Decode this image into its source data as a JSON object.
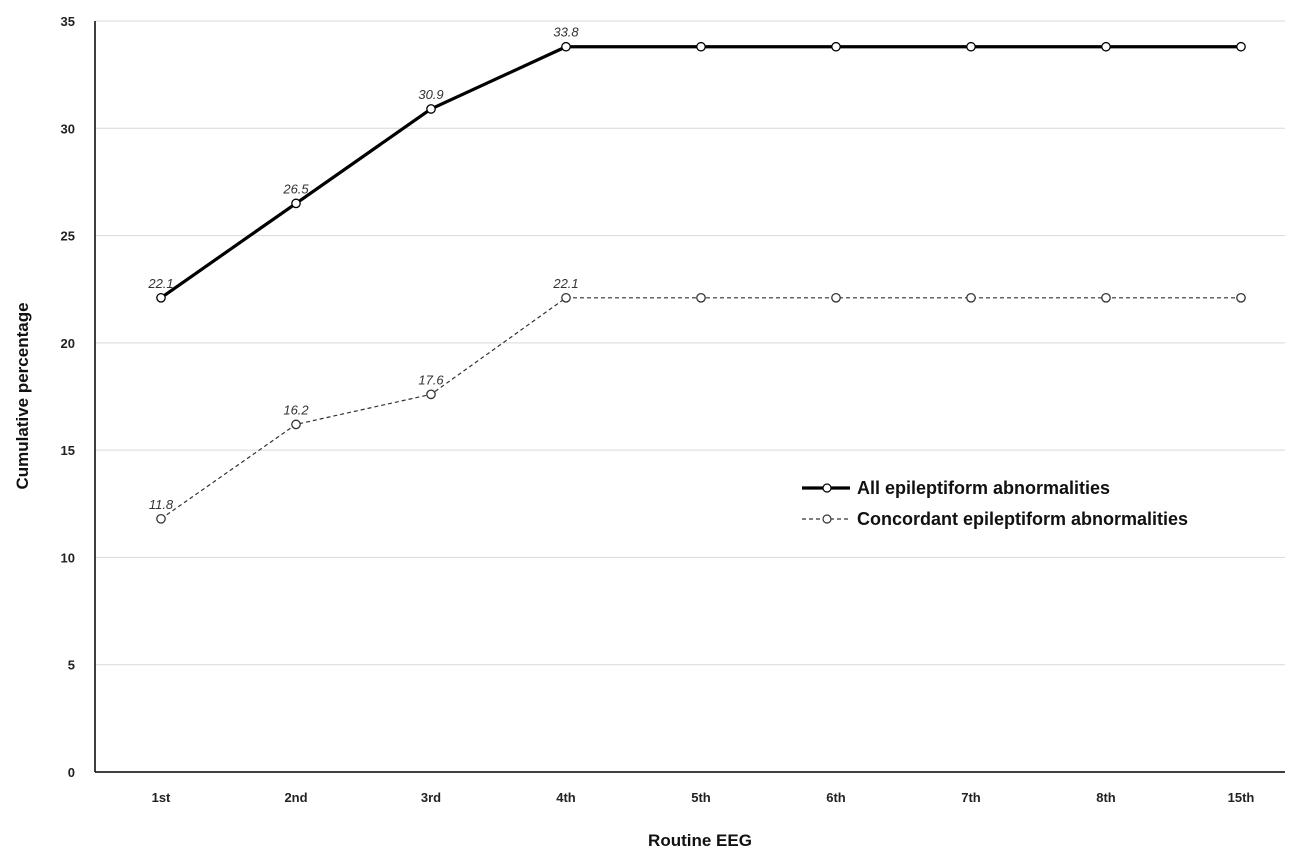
{
  "chart_data": {
    "type": "line",
    "categories": [
      "1st",
      "2nd",
      "3rd",
      "4th",
      "5th",
      "6th",
      "7th",
      "8th",
      "15th"
    ],
    "series": [
      {
        "name": "All epileptiform abnormalities",
        "values": [
          22.1,
          26.5,
          30.9,
          33.8,
          33.8,
          33.8,
          33.8,
          33.8,
          33.8
        ],
        "labels": [
          "22.1",
          "26.5",
          "30.9",
          "33.8",
          "",
          "",
          "",
          "",
          ""
        ],
        "line_style": "solid",
        "color": "#000000"
      },
      {
        "name": "Concordant epileptiform abnormalities",
        "values": [
          11.8,
          16.2,
          17.6,
          22.1,
          22.1,
          22.1,
          22.1,
          22.1,
          22.1
        ],
        "labels": [
          "11.8",
          "16.2",
          "17.6",
          "22.1",
          "",
          "",
          "",
          "",
          ""
        ],
        "line_style": "dashed",
        "color": "#333333"
      }
    ],
    "xlabel": "Routine EEG",
    "ylabel": "Cumulative percentage",
    "ylim": [
      0,
      35
    ],
    "yticks": [
      0,
      5,
      10,
      15,
      20,
      25,
      30,
      35
    ],
    "grid": true,
    "legend_position": "right"
  }
}
